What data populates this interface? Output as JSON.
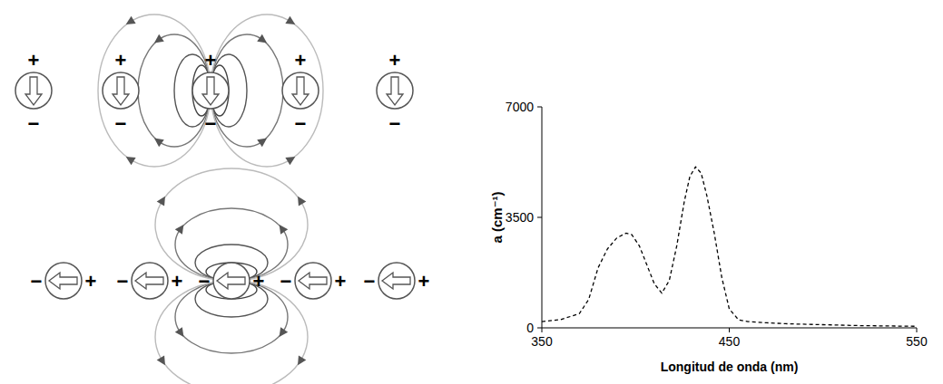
{
  "chart_data": {
    "type": "line",
    "x_label": "Longitud de onda (nm)",
    "y_label": "a (cm⁻¹)",
    "x": [
      350,
      360,
      370,
      375,
      380,
      385,
      390,
      395,
      398,
      402,
      406,
      410,
      414,
      418,
      422,
      426,
      429,
      432,
      435,
      438,
      442,
      446,
      450,
      455,
      460,
      470,
      480,
      500,
      520,
      550
    ],
    "values": [
      200,
      260,
      450,
      900,
      1900,
      2500,
      2850,
      3000,
      2950,
      2600,
      2000,
      1400,
      1100,
      1500,
      2600,
      4000,
      4800,
      5100,
      4900,
      4200,
      3000,
      1600,
      600,
      250,
      200,
      160,
      130,
      100,
      70,
      50
    ],
    "color": "#000000",
    "line_style": "dashed",
    "xlim": [
      350,
      550
    ],
    "xticks": [
      350,
      450,
      550
    ],
    "ylim": [
      0,
      7000
    ],
    "yticks": [
      0,
      3500,
      7000
    ],
    "grid": false
  },
  "diagram": {
    "positive_sign": "+",
    "negative_sign": "−"
  }
}
